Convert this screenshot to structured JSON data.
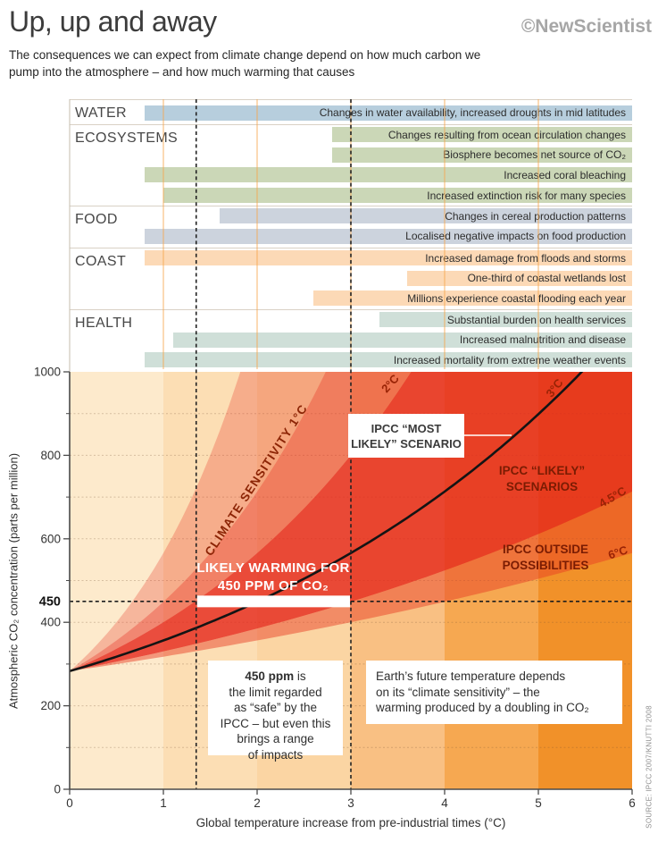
{
  "header": {
    "title": "Up, up and away",
    "logo": "©NewScientist",
    "subtitle_line1": "The consequences we can expect from climate change depend on how much carbon we",
    "subtitle_line2": "pump into the atmosphere – and how much warming that causes"
  },
  "chart_data": [
    {
      "type": "bar",
      "name": "climate-impact-temperature-ranges",
      "x_unit": "°C above pre-industrial",
      "x_range": [
        0,
        6
      ],
      "categories": [
        {
          "label": "WATER",
          "color": "#b7cedd",
          "bars": [
            {
              "text": "Changes in water availability, increased droughts in mid latitudes",
              "start_c": 0.8,
              "end_c": 6
            }
          ]
        },
        {
          "label": "ECOSYSTEMS",
          "color": "#cbd7b7",
          "bars": [
            {
              "text": "Changes resulting from ocean circulation changes",
              "start_c": 2.8,
              "end_c": 6
            },
            {
              "text": "Biosphere becomes net source of CO₂",
              "start_c": 2.8,
              "end_c": 6
            },
            {
              "text": "Increased coral bleaching",
              "start_c": 0.8,
              "end_c": 6
            },
            {
              "text": "Increased extinction risk for many species",
              "start_c": 1.0,
              "end_c": 6
            }
          ]
        },
        {
          "label": "FOOD",
          "color": "#ccd3dd",
          "bars": [
            {
              "text": "Changes in cereal production patterns",
              "start_c": 1.6,
              "end_c": 6
            },
            {
              "text": "Localised negative impacts on food production",
              "start_c": 0.8,
              "end_c": 6
            }
          ]
        },
        {
          "label": "COAST",
          "color": "#fcd9b6",
          "bars": [
            {
              "text": "Increased damage from floods and storms",
              "start_c": 0.8,
              "end_c": 6
            },
            {
              "text": "One-third of coastal wetlands lost",
              "start_c": 3.6,
              "end_c": 6
            },
            {
              "text": "Millions experience coastal flooding each year",
              "start_c": 2.6,
              "end_c": 6
            }
          ]
        },
        {
          "label": "HEALTH",
          "color": "#cfdfd8",
          "bars": [
            {
              "text": "Substantial burden on health services",
              "start_c": 3.3,
              "end_c": 6
            },
            {
              "text": "Increased malnutrition and disease",
              "start_c": 1.1,
              "end_c": 6
            },
            {
              "text": "Increased mortality from extreme weather events",
              "start_c": 0.8,
              "end_c": 6
            }
          ]
        }
      ]
    },
    {
      "type": "area",
      "name": "co2-vs-warming-climate-sensitivity-fan",
      "xlabel": "Global temperature increase from pre-industrial times (°C)",
      "ylabel": "Atmospheric CO₂ concentration (parts per million)",
      "xlim": [
        0,
        6
      ],
      "ylim": [
        0,
        1000
      ],
      "x_ticks": [
        0,
        1,
        2,
        3,
        4,
        5,
        6
      ],
      "y_ticks_major": [
        0,
        200,
        400,
        600,
        800,
        1000
      ],
      "y_ticks_minor": [
        100,
        300,
        500,
        700,
        900
      ],
      "y_highlight": {
        "value": 450,
        "label": "450"
      },
      "baseline_co2_ppm": 283,
      "curve_formula": "CO2(T) = 283 × 2^(T / S), where S = climate sensitivity in °C per CO2 doubling",
      "most_likely_sensitivity_c": 3,
      "sensitivity_curves_c": [
        1,
        1.5,
        2,
        3,
        4.5,
        6
      ],
      "sensitivity_bands": [
        {
          "from_c": 1,
          "to_c": 1.5,
          "color": "rgba(231,48,32,0.28)"
        },
        {
          "from_c": 1.5,
          "to_c": 2,
          "color": "rgba(231,45,30,0.52)"
        },
        {
          "from_c": 2,
          "to_c": 4.5,
          "color": "rgba(229,38,26,0.80)"
        },
        {
          "from_c": 4.5,
          "to_c": 6,
          "color": "rgba(231,60,35,0.48)"
        }
      ],
      "likely_450_range_c": [
        1.35,
        3
      ],
      "background_stripes": [
        "#fdeacc",
        "#fcdeb4",
        "#fbd5a3",
        "#f9c083",
        "#f6a851",
        "#f19129"
      ],
      "curve_color": "#141414"
    }
  ],
  "annotations": {
    "climate_sensitivity_label": "CLIMATE SENSITIVITY 1°C",
    "curve_2c": "2°C",
    "curve_3c": "3°C",
    "curve_45c": "4.5°C",
    "curve_6c": "6°C",
    "ipcc_likely_line1": "IPCC “LIKELY”",
    "ipcc_likely_line2": "SCENARIOS",
    "ipcc_outside_line1": "IPCC OUTSIDE",
    "ipcc_outside_line2": "POSSIBILITIES",
    "callout_line1": "IPCC “MOST",
    "callout_line2": "LIKELY” SCENARIO",
    "likely_warming_line1": "LIKELY WARMING FOR",
    "likely_warming_line2": "450 PPM OF CO₂",
    "box_450_bold": "450 ppm",
    "box_450_rest": " is",
    "box_450_lines": [
      "the limit regarded",
      "as “safe” by the",
      "IPCC – but even this",
      "brings a range",
      "of impacts"
    ],
    "box_earth_lines": [
      "Earth’s future temperature depends",
      "on its “climate sensitivity” – the",
      "warming produced by a doubling in CO₂"
    ]
  },
  "source": "SOURCE: IPCC 2007/KNUTTI 2008"
}
